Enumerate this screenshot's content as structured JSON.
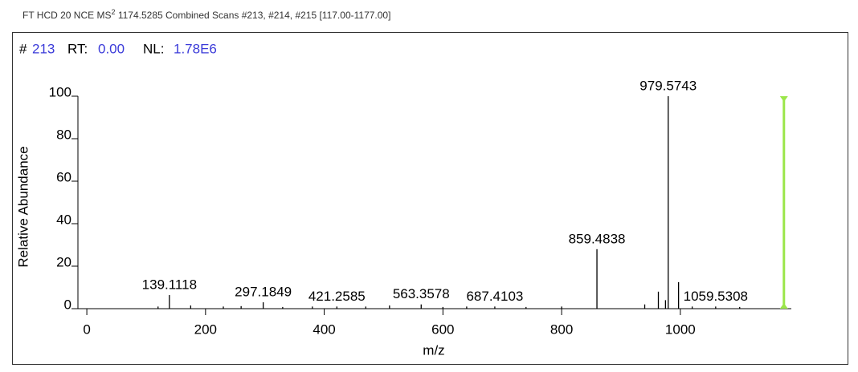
{
  "header": {
    "title_main": "FT HCD 20 NCE MS",
    "title_sup": "2",
    "title_rest": "1174.5285 Combined Scans #213, #214, #215 [117.00-1177.00]",
    "scan_label": "#",
    "scan_value": "213",
    "rt_label": "RT:",
    "rt_value": "0.00",
    "nl_label": "NL:",
    "nl_value": "1.78E6"
  },
  "chart_data": {
    "type": "stick",
    "x_label": "m/z",
    "y_label": "Relative Abundance",
    "xlim": [
      -15,
      1187
    ],
    "xticks": [
      0,
      200,
      400,
      600,
      800,
      1000
    ],
    "ylim": [
      0,
      100
    ],
    "yticks": [
      0,
      20,
      40,
      60,
      80,
      100
    ],
    "color": "#000000",
    "labeled_peaks": {
      "x": [
        139.1118,
        297.1849,
        421.2585,
        563.3578,
        687.4103,
        859.4838,
        979.5743,
        1059.5308
      ],
      "values": [
        6.4,
        3,
        1,
        2,
        1,
        28,
        100,
        1
      ]
    },
    "other_peaks": {
      "x": [
        120,
        175,
        230,
        260,
        330,
        380,
        470,
        510,
        600,
        640,
        740,
        800,
        940,
        963,
        975,
        997,
        1020,
        1100
      ],
      "values": [
        1,
        1.5,
        1,
        1.2,
        0.8,
        1,
        1,
        1.5,
        0.8,
        1,
        0.8,
        1,
        2,
        8,
        4,
        12.5,
        1,
        0.8
      ]
    },
    "precursor": {
      "x": 1174.5285,
      "value": 100,
      "color": "#9be64a"
    }
  }
}
